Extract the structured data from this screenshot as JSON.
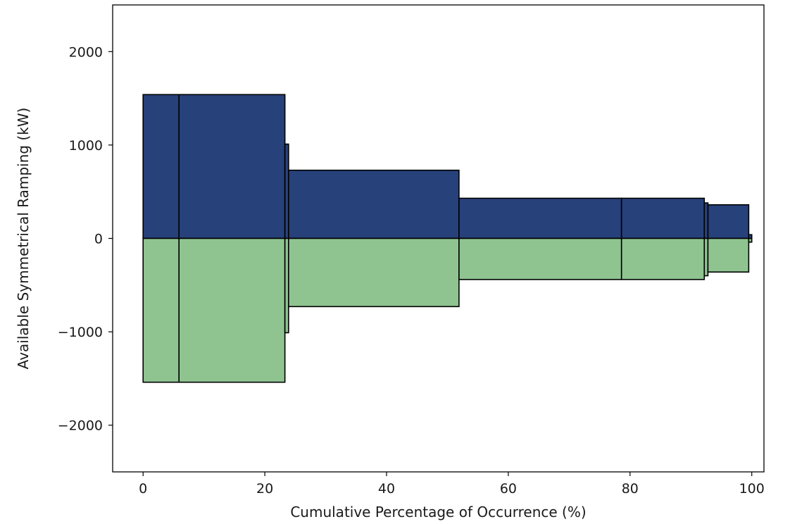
{
  "chart_data": {
    "type": "bar",
    "title": "",
    "xlabel": "Cumulative Percentage of Occurrence (%)",
    "ylabel": "Available Symmetrical Ramping (kW)",
    "xlim": [
      -5,
      102
    ],
    "ylim": [
      -2500,
      2500
    ],
    "xticks": [
      0,
      20,
      40,
      60,
      80,
      100
    ],
    "yticks": [
      -2000,
      -1000,
      0,
      1000,
      2000
    ],
    "ytick_labels": [
      "−2000",
      "−1000",
      "0",
      "1000",
      "2000"
    ],
    "grid": false,
    "legend": false,
    "colors": {
      "up": "#27417a",
      "down": "#8fc491",
      "edge": "#000000"
    },
    "segments": [
      {
        "x_start": 0.0,
        "x_end": 5.9,
        "up": 1540,
        "down": -1540
      },
      {
        "x_start": 5.9,
        "x_end": 23.3,
        "up": 1540,
        "down": -1540
      },
      {
        "x_start": 23.3,
        "x_end": 23.9,
        "up": 1010,
        "down": -1010
      },
      {
        "x_start": 23.9,
        "x_end": 51.9,
        "up": 730,
        "down": -730
      },
      {
        "x_start": 51.9,
        "x_end": 78.6,
        "up": 430,
        "down": -440
      },
      {
        "x_start": 78.6,
        "x_end": 92.2,
        "up": 430,
        "down": -440
      },
      {
        "x_start": 92.2,
        "x_end": 92.8,
        "up": 380,
        "down": -400
      },
      {
        "x_start": 92.8,
        "x_end": 99.5,
        "up": 360,
        "down": -360
      },
      {
        "x_start": 99.5,
        "x_end": 100.0,
        "up": 40,
        "down": -40
      }
    ]
  }
}
